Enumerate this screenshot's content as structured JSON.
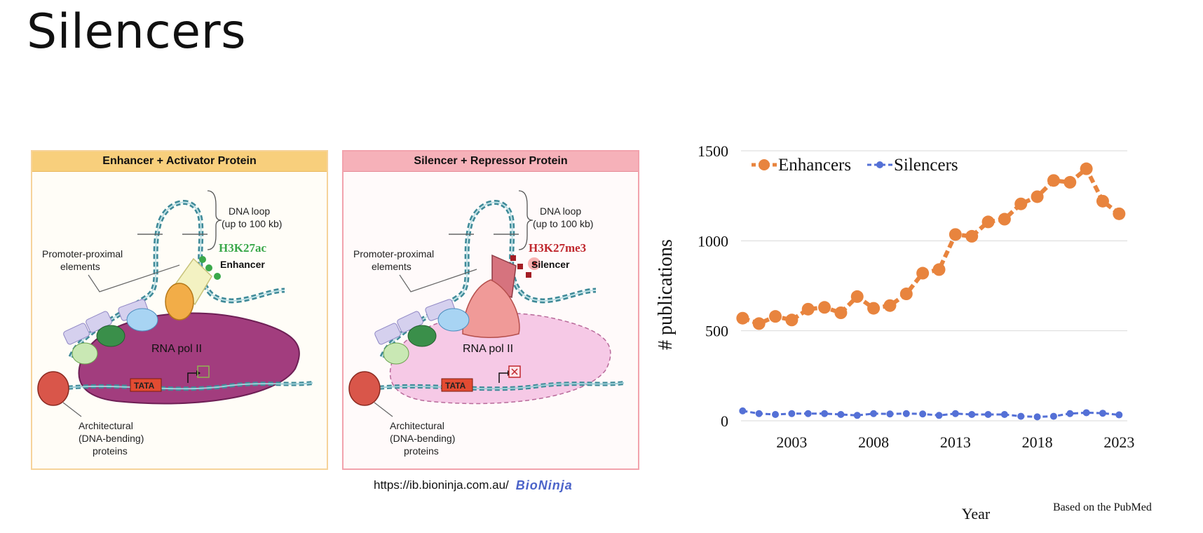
{
  "slide": {
    "title": "Silencers"
  },
  "enhancer_panel": {
    "title": "Enhancer + Activator Protein",
    "loop_label_1": "DNA loop",
    "loop_label_2": "(up to 100 kb)",
    "mark_label": "H3K27ac",
    "element_label": "Enhancer",
    "promoter_label_1": "Promoter-proximal",
    "promoter_label_2": "elements",
    "polymerase_label": "RNA pol II",
    "tata_label": "TATA",
    "arch_label_1": "Architectural",
    "arch_label_2": "(DNA-bending)",
    "arch_label_3": "proteins",
    "colors": {
      "mark": "#3aa84a",
      "header": "#f8cf7c",
      "polymerase": "#a23d7e"
    }
  },
  "silencer_panel": {
    "title": "Silencer + Repressor Protein",
    "loop_label_1": "DNA loop",
    "loop_label_2": "(up to 100 kb)",
    "mark_label": "H3K27me3",
    "element_label": "Silencer",
    "promoter_label_1": "Promoter-proximal",
    "promoter_label_2": "elements",
    "polymerase_label": "RNA pol II",
    "tata_label": "TATA",
    "arch_label_1": "Architectural",
    "arch_label_2": "(DNA-bending)",
    "arch_label_3": "proteins",
    "colors": {
      "mark": "#c0282e",
      "header": "#f6b1b9",
      "polymerase": "#f6c9e6"
    }
  },
  "source": {
    "url": "https://ib.bioninja.com.au/",
    "logo": "BioNinja"
  },
  "chart_note": "Based on the PubMed",
  "chart_data": {
    "type": "line",
    "xlabel": "Year",
    "ylabel": "# publications",
    "x": [
      2000,
      2001,
      2002,
      2003,
      2004,
      2005,
      2006,
      2007,
      2008,
      2009,
      2010,
      2011,
      2012,
      2013,
      2014,
      2015,
      2016,
      2017,
      2018,
      2019,
      2020,
      2021,
      2022,
      2023
    ],
    "xticks": [
      2003,
      2008,
      2013,
      2018,
      2023
    ],
    "xlim": [
      1999.9,
      2023.5
    ],
    "ylim": [
      0,
      1500
    ],
    "yticks": [
      0,
      500,
      1000,
      1500
    ],
    "grid": true,
    "legend": "top-left",
    "series": [
      {
        "name": "Enhancers",
        "color": "#e8843e",
        "values": [
          570,
          540,
          580,
          560,
          620,
          630,
          600,
          690,
          625,
          640,
          705,
          820,
          840,
          1035,
          1025,
          1105,
          1120,
          1205,
          1245,
          1335,
          1325,
          1400,
          1220,
          1150
        ]
      },
      {
        "name": "Silencers",
        "color": "#5470d6",
        "values": [
          55,
          40,
          35,
          40,
          40,
          40,
          35,
          30,
          40,
          38,
          40,
          38,
          30,
          40,
          35,
          35,
          35,
          25,
          22,
          25,
          40,
          45,
          42,
          33
        ]
      }
    ]
  }
}
